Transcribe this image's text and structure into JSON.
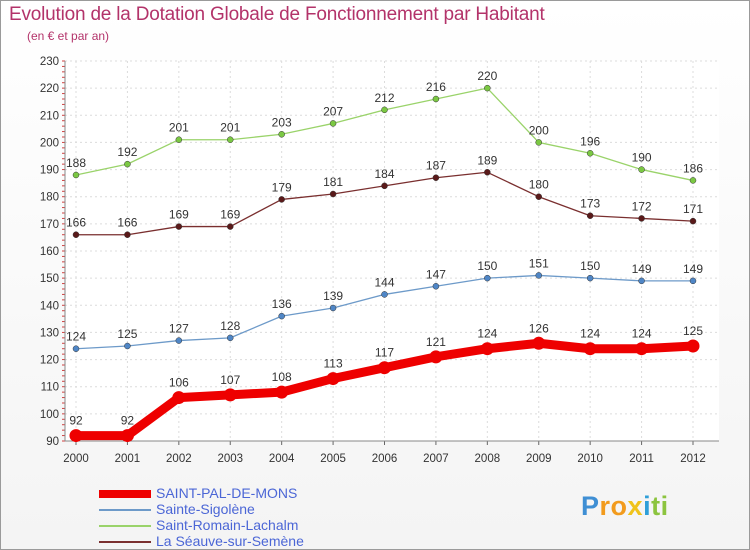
{
  "header": {
    "title": "Evolution de la Dotation Globale de Fonctionnement par Habitant",
    "subtitle": "(en € et par an)"
  },
  "brand": {
    "text": "Proxiti"
  },
  "chart_data": {
    "type": "line",
    "title": "Evolution de la Dotation Globale de Fonctionnement par Habitant",
    "subtitle": "(en € et par an)",
    "xlabel": "",
    "ylabel": "",
    "x": [
      "2000",
      "2001",
      "2002",
      "2003",
      "2004",
      "2005",
      "2006",
      "2007",
      "2008",
      "2009",
      "2010",
      "2011",
      "2012"
    ],
    "ylim": [
      90,
      230
    ],
    "yticks": [
      90,
      100,
      110,
      120,
      130,
      140,
      150,
      160,
      170,
      180,
      190,
      200,
      210,
      220,
      230
    ],
    "grid": true,
    "legend_position": "bottom-left",
    "series": [
      {
        "name": "SAINT-PAL-DE-MONS",
        "color": "#ee0000",
        "marker_color": "#ee0000",
        "emphasis": true,
        "values": [
          92,
          92,
          106,
          107,
          108,
          113,
          117,
          121,
          124,
          126,
          124,
          124,
          125
        ]
      },
      {
        "name": "Sainte-Sigolène",
        "color": "#6d9ac9",
        "marker_color": "#4f86c6",
        "emphasis": false,
        "values": [
          124,
          125,
          127,
          128,
          136,
          139,
          144,
          147,
          150,
          151,
          150,
          149,
          149
        ]
      },
      {
        "name": "Saint-Romain-Lachalm",
        "color": "#9ad36a",
        "marker_color": "#7bc843",
        "emphasis": false,
        "values": [
          188,
          192,
          201,
          201,
          203,
          207,
          212,
          216,
          220,
          200,
          196,
          190,
          186
        ]
      },
      {
        "name": "La Séauve-sur-Semène",
        "color": "#7a2f2f",
        "marker_color": "#5a1a1a",
        "emphasis": false,
        "values": [
          166,
          166,
          169,
          169,
          179,
          181,
          184,
          187,
          189,
          180,
          173,
          172,
          171
        ]
      }
    ]
  }
}
